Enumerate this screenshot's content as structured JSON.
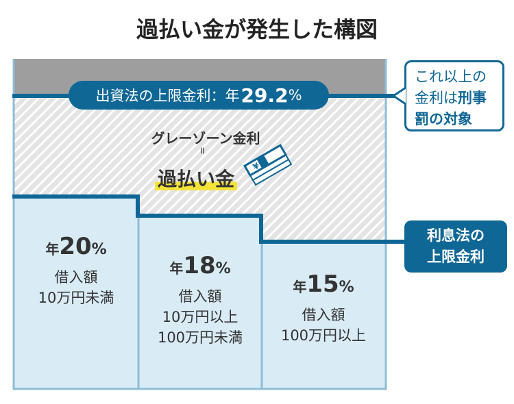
{
  "title": "過払い金が発生した構図",
  "upper_limit": {
    "prefix": "出資法の上限金利：年",
    "value": "29.2",
    "unit": "%"
  },
  "grayzone": {
    "label": "グレーゾーン金利",
    "equals": "=",
    "result": "過払い金",
    "icon": "yen-banknote-stack-icon"
  },
  "callout_upper": {
    "line1": "これ以上の",
    "line2_normal": "金利は",
    "line2_bold": "刑事",
    "line3_bold": "罰の対象"
  },
  "callout_lower": {
    "line1": "利息法の",
    "line2": "上限金利"
  },
  "columns": [
    {
      "prefix": "年",
      "value": "20",
      "unit": "%",
      "lines": [
        "借入額",
        "10万円未満"
      ]
    },
    {
      "prefix": "年",
      "value": "18",
      "unit": "%",
      "lines": [
        "借入額",
        "10万円以上",
        "100万円未満"
      ]
    },
    {
      "prefix": "年",
      "value": "15",
      "unit": "%",
      "lines": [
        "借入額",
        "100万円以上"
      ]
    }
  ],
  "colors": {
    "primary": "#0f6796",
    "fill": "#d9ebf5",
    "gray": "#9e9e9e",
    "highlight": "#f5e33a"
  }
}
